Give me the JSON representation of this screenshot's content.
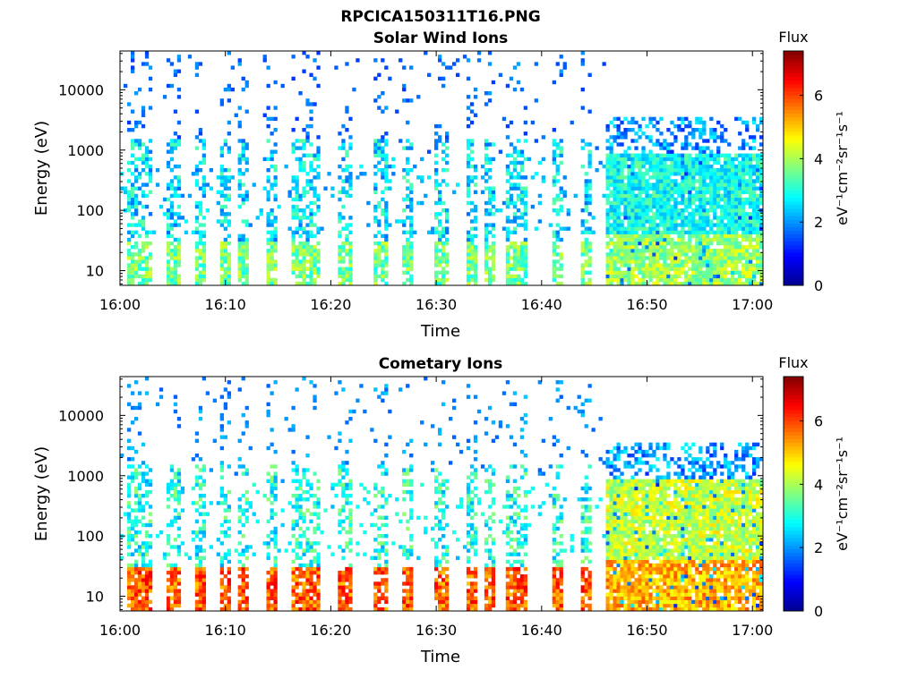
{
  "figure": {
    "title": "RPCICA150311T16.PNG"
  },
  "colors": {
    "jet": [
      "#00008f",
      "#0000ff",
      "#0080ff",
      "#00ffff",
      "#80ff80",
      "#ffff00",
      "#ff8000",
      "#ff0000",
      "#800000"
    ]
  },
  "chart_data": [
    {
      "type": "heatmap",
      "title": "Solar Wind Ions",
      "xlabel": "Time",
      "ylabel": "Energy (eV)",
      "xlim": [
        "16:00",
        "17:01"
      ],
      "ylim": [
        5.7,
        44000
      ],
      "y_scale": "log",
      "x_ticks": [
        "16:00",
        "16:10",
        "16:20",
        "16:30",
        "16:40",
        "16:50",
        "17:00"
      ],
      "y_ticks": [
        {
          "value": 10,
          "label": "10"
        },
        {
          "value": 100,
          "label": "100"
        },
        {
          "value": 1000,
          "label": "1000"
        },
        {
          "value": 10000,
          "label": "10000"
        }
      ],
      "colorbar": {
        "title": "Flux",
        "label": "eV⁻¹cm⁻²sr⁻¹s⁻¹",
        "range": [
          0,
          7.4
        ],
        "ticks": [
          "0",
          "2",
          "4",
          "6"
        ],
        "colormap": "jet"
      },
      "pattern": {
        "bursts_min": [
          0.9,
          2.2,
          4.9,
          7.5,
          9.7,
          11.6,
          14.3,
          16.8,
          18.1,
          21.2,
          24.6,
          27.1,
          30.3,
          33.1,
          35.0,
          37.0,
          37.9,
          41.3,
          44.0
        ],
        "low_energy_band": [
          6,
          30
        ],
        "low_energy_level": 3.6,
        "mid_energy_level": 2.6,
        "sparse_high_energy_level": 1.3,
        "dense_region_start_min": 46,
        "dense_region_level": 2.9
      }
    },
    {
      "type": "heatmap",
      "title": "Cometary Ions",
      "xlabel": "Time",
      "ylabel": "Energy (eV)",
      "xlim": [
        "16:00",
        "17:01"
      ],
      "ylim": [
        5.7,
        44000
      ],
      "y_scale": "log",
      "x_ticks": [
        "16:00",
        "16:10",
        "16:20",
        "16:30",
        "16:40",
        "16:50",
        "17:00"
      ],
      "y_ticks": [
        {
          "value": 10,
          "label": "10"
        },
        {
          "value": 100,
          "label": "100"
        },
        {
          "value": 1000,
          "label": "1000"
        },
        {
          "value": 10000,
          "label": "10000"
        }
      ],
      "colorbar": {
        "title": "Flux",
        "label": "eV⁻¹cm⁻²sr⁻¹s⁻¹",
        "range": [
          0,
          7.4
        ],
        "ticks": [
          "0",
          "2",
          "4",
          "6"
        ],
        "colormap": "jet"
      },
      "pattern": {
        "bursts_min": [
          0.9,
          2.2,
          4.9,
          7.5,
          9.7,
          11.6,
          14.3,
          16.8,
          18.1,
          21.2,
          24.6,
          27.1,
          30.3,
          33.1,
          35.0,
          37.0,
          37.9,
          41.3,
          44.0
        ],
        "low_energy_band": [
          6,
          30
        ],
        "low_energy_level": 5.8,
        "mid_energy_level": 3.0,
        "sparse_high_energy_level": 1.6,
        "dense_region_start_min": 46,
        "dense_region_level": 4.2
      }
    }
  ]
}
